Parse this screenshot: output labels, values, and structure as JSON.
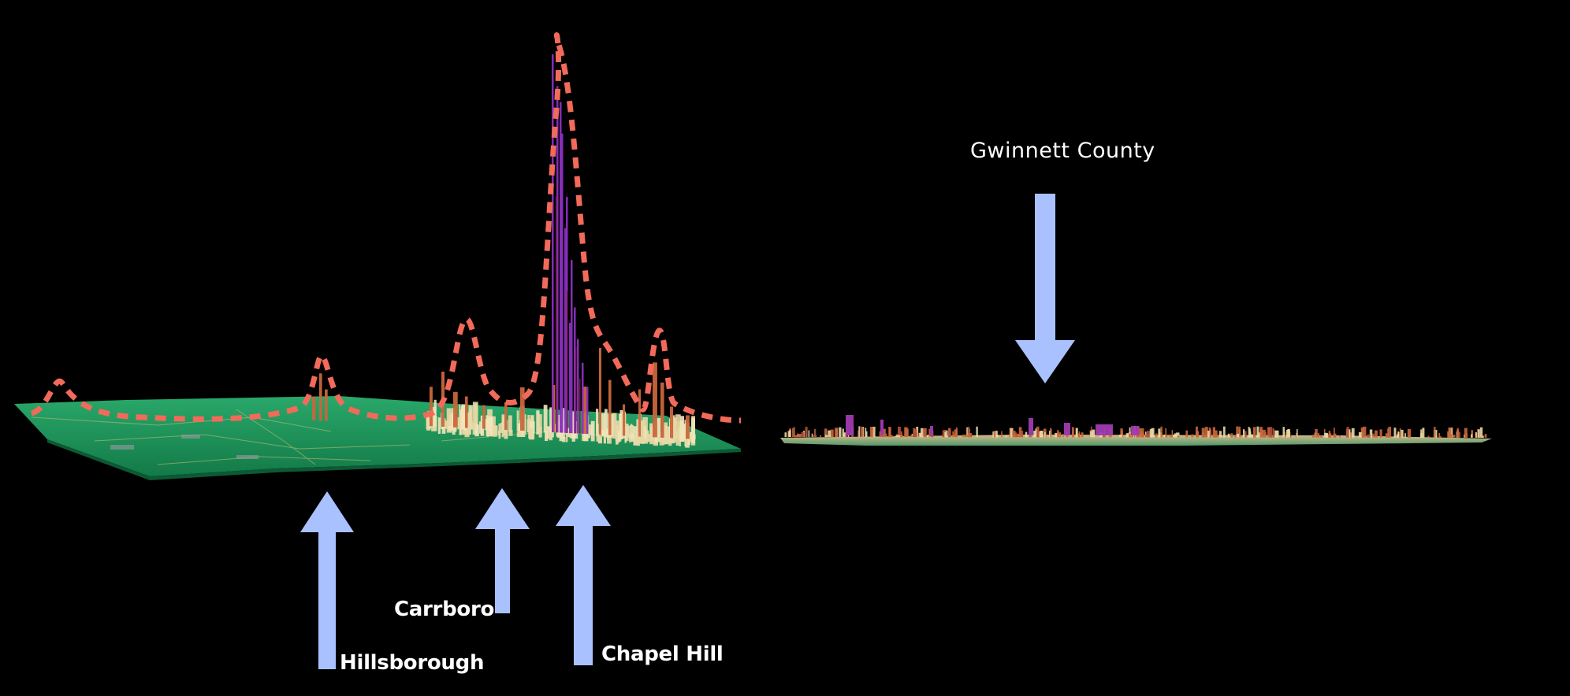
{
  "labels": {
    "gwinnett": "Gwinnett County",
    "carrboro": "Carrboro",
    "hillsborough": "Hillsborough",
    "chapel_hill": "Chapel Hill"
  },
  "colors": {
    "background": "#000000",
    "arrow": "#a9c1ff",
    "dashed_outline": "#f26a5a",
    "terrain": "#1f9a5e",
    "tall_spike": "#8a2fc0",
    "low_spike": "#c9663b",
    "pale_spike": "#e8d8a6"
  },
  "icons": [
    "arrow-up-icon",
    "arrow-down-icon"
  ]
}
